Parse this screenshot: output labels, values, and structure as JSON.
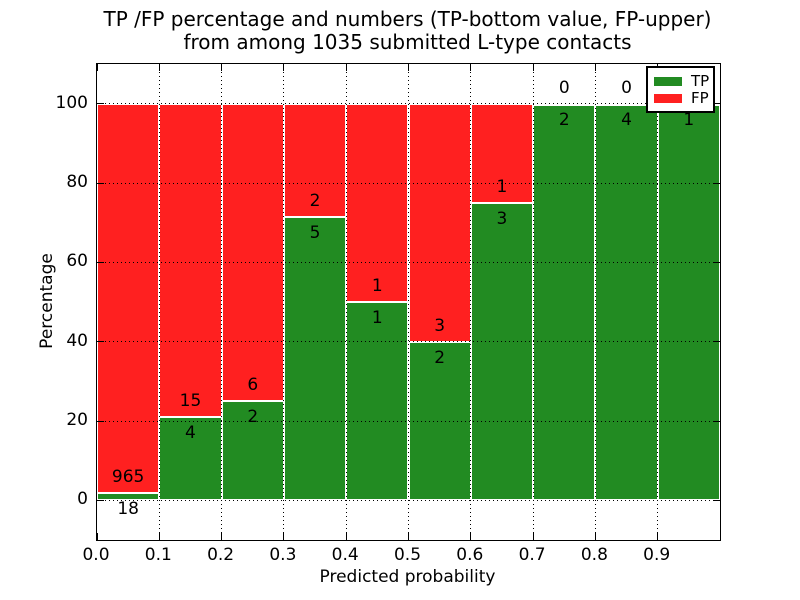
{
  "chart_data": {
    "type": "bar",
    "stacked": true,
    "title_lines": [
      "TP /FP percentage and numbers (TP-bottom value, FP-upper)",
      "from among 1035 submitted L-type contacts"
    ],
    "xlabel": "Predicted probability",
    "ylabel": "Percentage",
    "xlim": [
      0.0,
      1.0
    ],
    "ylim": [
      -10,
      110
    ],
    "grid": "dotted, both axes, drawn over bars",
    "bin_width": 0.1,
    "categories": [
      "0.0-0.1",
      "0.1-0.2",
      "0.2-0.3",
      "0.3-0.4",
      "0.4-0.5",
      "0.5-0.6",
      "0.6-0.7",
      "0.7-0.8",
      "0.8-0.9",
      "0.9-1.0"
    ],
    "x_tick_labels": [
      "0.0",
      "0.1",
      "0.2",
      "0.3",
      "0.4",
      "0.5",
      "0.6",
      "0.7",
      "0.8",
      "0.9"
    ],
    "y_tick_labels": [
      "0",
      "20",
      "40",
      "60",
      "80",
      "100"
    ],
    "y_tick_values": [
      0,
      20,
      40,
      60,
      80,
      100
    ],
    "series": [
      {
        "name": "TP",
        "color": "#228b22",
        "counts": [
          18,
          4,
          2,
          5,
          1,
          2,
          3,
          2,
          4,
          1
        ],
        "pct": [
          1.83,
          21.05,
          25.0,
          71.43,
          50.0,
          40.0,
          75.0,
          100.0,
          100.0,
          100.0
        ]
      },
      {
        "name": "FP",
        "color": "#ff2020",
        "counts": [
          965,
          15,
          6,
          2,
          1,
          3,
          1,
          0,
          0,
          0
        ],
        "pct": [
          98.17,
          78.95,
          75.0,
          28.57,
          50.0,
          60.0,
          25.0,
          0.0,
          0.0,
          0.0
        ]
      }
    ],
    "bar_edge_color": "#ffffff",
    "label_color": "#000000",
    "legend": {
      "position": "upper right",
      "entries": [
        {
          "label": "TP",
          "color": "#228b22"
        },
        {
          "label": "FP",
          "color": "#ff2020"
        }
      ]
    }
  }
}
